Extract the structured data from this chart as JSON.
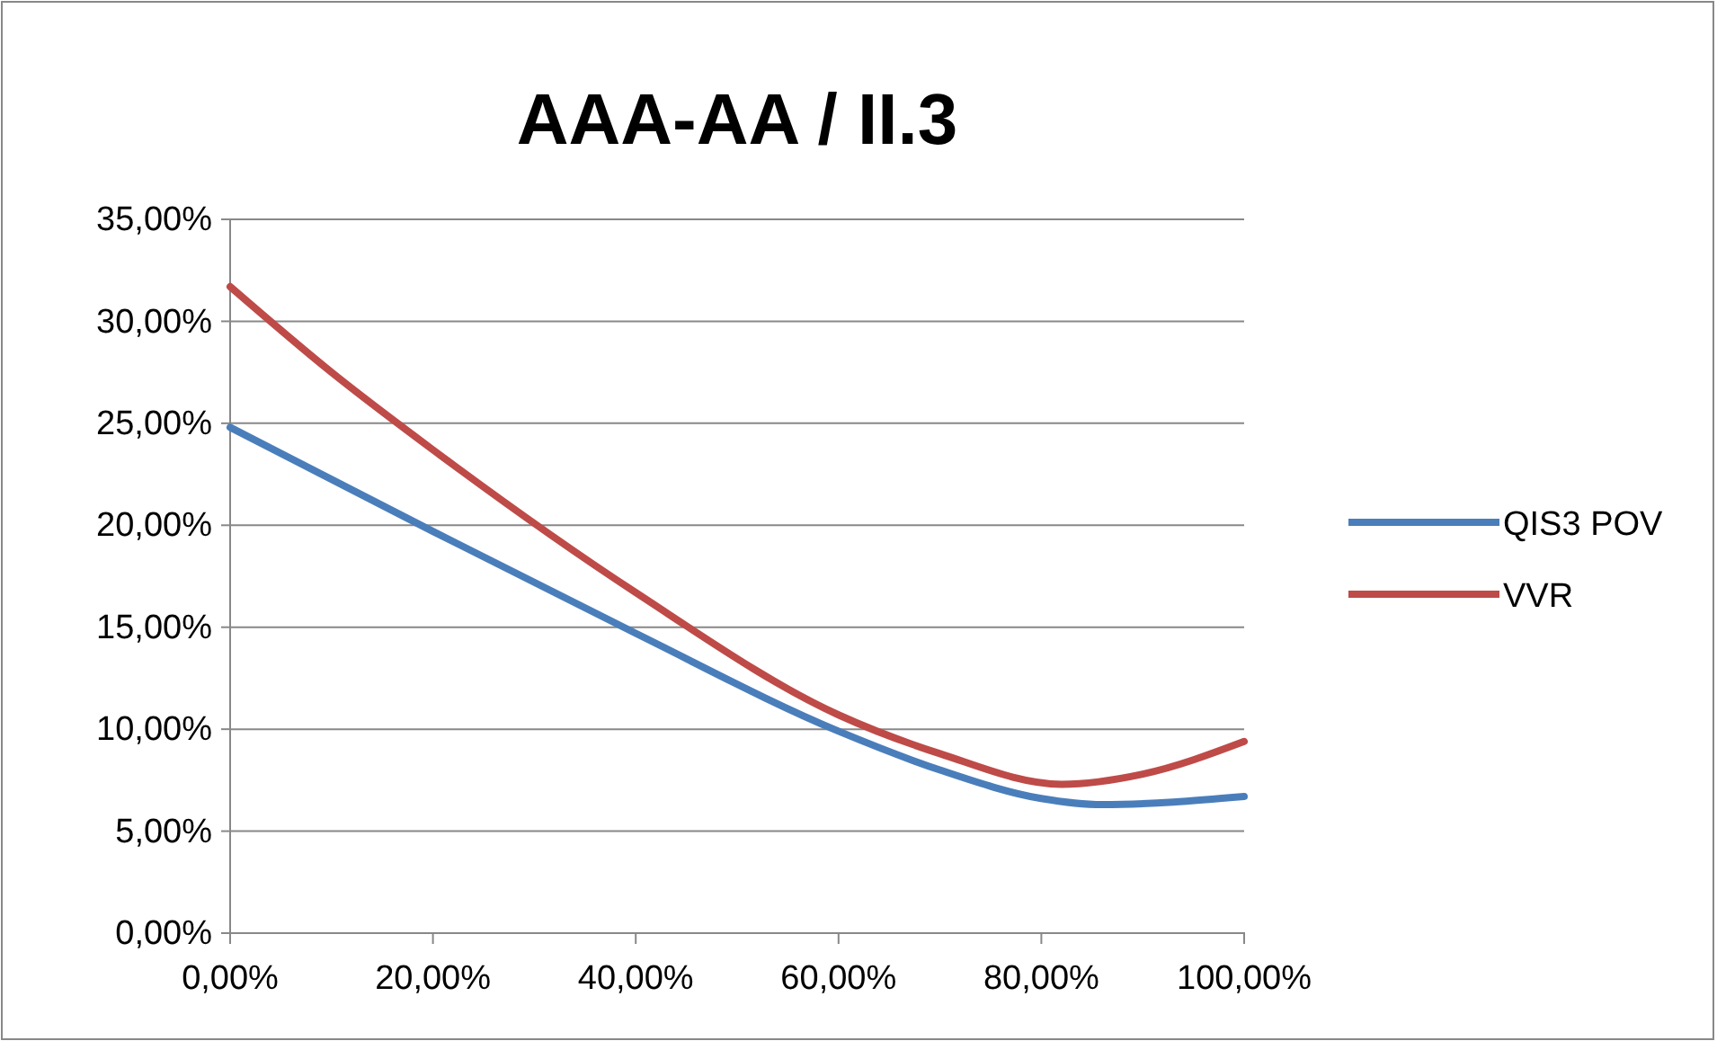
{
  "chart_data": {
    "type": "line",
    "title": "AAA-AA / II.3",
    "xlim": [
      0,
      100
    ],
    "xticks": [
      {
        "value": 0,
        "label": "0,00%"
      },
      {
        "value": 20,
        "label": "20,00%"
      },
      {
        "value": 40,
        "label": "40,00%"
      },
      {
        "value": 60,
        "label": "60,00%"
      },
      {
        "value": 80,
        "label": "80,00%"
      },
      {
        "value": 100,
        "label": "100,00%"
      }
    ],
    "ylim": [
      0,
      35
    ],
    "yticks": [
      {
        "value": 0,
        "label": "0,00%"
      },
      {
        "value": 5,
        "label": "5,00%"
      },
      {
        "value": 10,
        "label": "10,00%"
      },
      {
        "value": 15,
        "label": "15,00%"
      },
      {
        "value": 20,
        "label": "20,00%"
      },
      {
        "value": 25,
        "label": "25,00%"
      },
      {
        "value": 30,
        "label": "30,00%"
      },
      {
        "value": 35,
        "label": "35,00%"
      }
    ],
    "grid": "y",
    "legend": "right",
    "marker": "none",
    "line_style": "solid",
    "series": [
      {
        "name": "QIS3 POV",
        "color": "#4a7ebb",
        "x": [
          0,
          20,
          40,
          60,
          70,
          80,
          86,
          100
        ],
        "values": [
          24.8,
          19.7,
          14.7,
          9.9,
          8.0,
          6.6,
          6.3,
          6.7
        ]
      },
      {
        "name": "VVR",
        "color": "#be4b48",
        "x": [
          0,
          10,
          20,
          40,
          60,
          70,
          82,
          90,
          100
        ],
        "values": [
          31.7,
          27.5,
          23.7,
          16.7,
          10.7,
          8.8,
          7.3,
          7.8,
          9.4
        ]
      }
    ]
  }
}
